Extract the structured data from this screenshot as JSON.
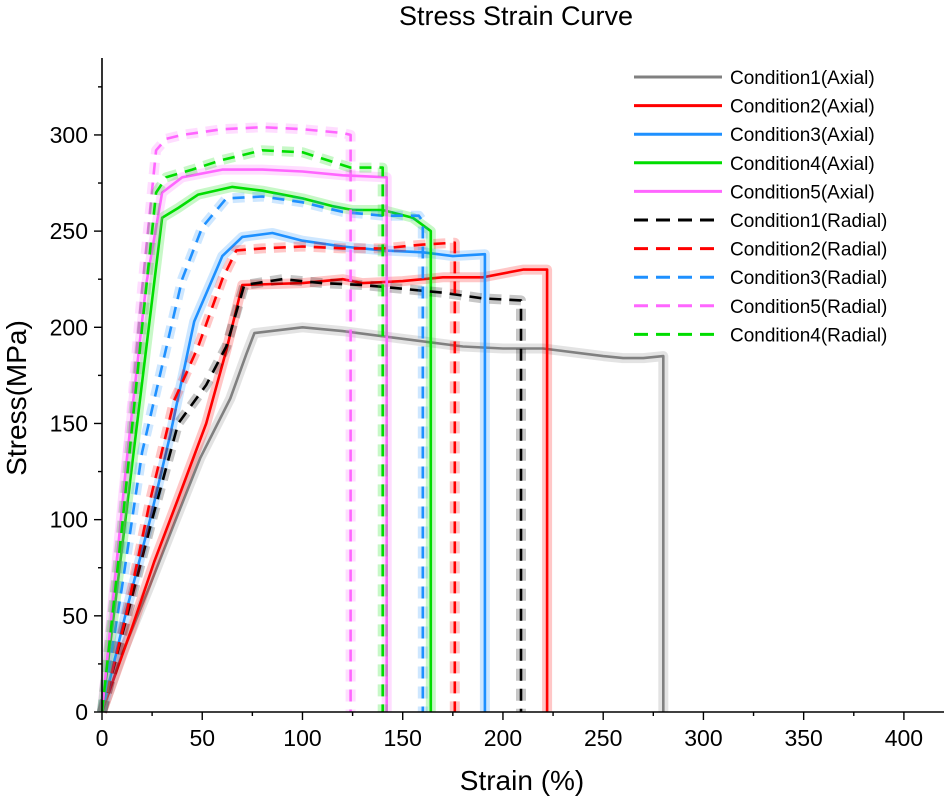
{
  "chart_data": {
    "type": "line",
    "title": "Stress Strain Curve",
    "xlabel": "Strain (%)",
    "ylabel": "Stress(MPa)",
    "xlim": [
      0,
      420
    ],
    "ylim": [
      0,
      340
    ],
    "xticks": [
      0,
      50,
      100,
      150,
      200,
      250,
      300,
      350,
      400
    ],
    "yticks": [
      0,
      50,
      100,
      150,
      200,
      250,
      300
    ],
    "legend_position": "top-right",
    "grid": false,
    "series": [
      {
        "name": "Condition1(Axial)",
        "color": "#808080",
        "dash": "solid",
        "x": [
          0,
          10,
          24,
          36,
          49,
          64,
          72,
          76,
          100,
          120,
          150,
          180,
          200,
          220,
          250,
          260,
          270,
          280,
          280
        ],
        "y": [
          0,
          30,
          66,
          98,
          132,
          163,
          186,
          197,
          200,
          198,
          194,
          190,
          189,
          189,
          185,
          184,
          184,
          185,
          0
        ]
      },
      {
        "name": "Condition2(Axial)",
        "color": "#ff0000",
        "dash": "solid",
        "x": [
          0,
          15,
          26,
          38,
          52,
          62,
          70,
          100,
          120,
          130,
          150,
          170,
          190,
          210,
          222,
          222
        ],
        "y": [
          0,
          44,
          78,
          111,
          150,
          188,
          222,
          223,
          225,
          223,
          224,
          226,
          226,
          230,
          230,
          0
        ]
      },
      {
        "name": "Condition3(Axial)",
        "color": "#1e90ff",
        "dash": "solid",
        "x": [
          0,
          12,
          24,
          34,
          46,
          60,
          70,
          85,
          100,
          120,
          140,
          160,
          175,
          191,
          191
        ],
        "y": [
          0,
          52,
          100,
          144,
          203,
          237,
          247,
          249,
          245,
          242,
          240,
          239,
          237,
          238,
          0
        ]
      },
      {
        "name": "Condition4(Axial)",
        "color": "#00dd00",
        "dash": "solid",
        "x": [
          0,
          14,
          30,
          38,
          48,
          65,
          80,
          100,
          115,
          125,
          140,
          155,
          164,
          164
        ],
        "y": [
          0,
          120,
          257,
          262,
          269,
          273,
          271,
          267,
          263,
          261,
          261,
          257,
          250,
          0
        ]
      },
      {
        "name": "Condition5(Axial)",
        "color": "#ff66ff",
        "dash": "solid",
        "x": [
          0,
          12,
          22,
          30,
          40,
          60,
          80,
          100,
          120,
          142,
          142
        ],
        "y": [
          0,
          128,
          222,
          270,
          278,
          282,
          282,
          281,
          279,
          278,
          0
        ]
      },
      {
        "name": "Condition1(Radial)",
        "color": "#000000",
        "dash": "dashed",
        "x": [
          0,
          12,
          25,
          38,
          52,
          62,
          71,
          90,
          110,
          130,
          150,
          170,
          190,
          209,
          209
        ],
        "y": [
          0,
          48,
          100,
          150,
          170,
          190,
          222,
          225,
          223,
          222,
          220,
          218,
          215,
          214,
          0
        ]
      },
      {
        "name": "Condition2(Radial)",
        "color": "#ff0000",
        "dash": "dashed",
        "x": [
          0,
          12,
          24,
          36,
          48,
          60,
          67,
          80,
          100,
          120,
          140,
          160,
          176,
          176
        ],
        "y": [
          0,
          50,
          110,
          162,
          190,
          225,
          240,
          241,
          242,
          241,
          241,
          243,
          244,
          0
        ]
      },
      {
        "name": "Condition3(Radial)",
        "color": "#1e90ff",
        "dash": "dashed",
        "x": [
          0,
          10,
          20,
          30,
          40,
          50,
          62,
          80,
          100,
          120,
          140,
          150,
          158,
          160,
          160
        ],
        "y": [
          0,
          65,
          135,
          180,
          225,
          252,
          267,
          268,
          265,
          260,
          258,
          258,
          258,
          255,
          0
        ]
      },
      {
        "name": "Condition5(Radial)",
        "color": "#ff66ff",
        "dash": "dashed",
        "x": [
          0,
          10,
          20,
          27,
          32,
          40,
          60,
          80,
          100,
          120,
          124,
          124
        ],
        "y": [
          0,
          100,
          220,
          292,
          298,
          300,
          303,
          304,
          303,
          301,
          300,
          0
        ]
      },
      {
        "name": "Condition4(Radial)",
        "color": "#00dd00",
        "dash": "dashed",
        "x": [
          0,
          10,
          20,
          27,
          32,
          45,
          60,
          80,
          100,
          124,
          140,
          140
        ],
        "y": [
          0,
          96,
          200,
          270,
          278,
          282,
          287,
          292,
          291,
          283,
          283,
          0
        ]
      }
    ]
  }
}
